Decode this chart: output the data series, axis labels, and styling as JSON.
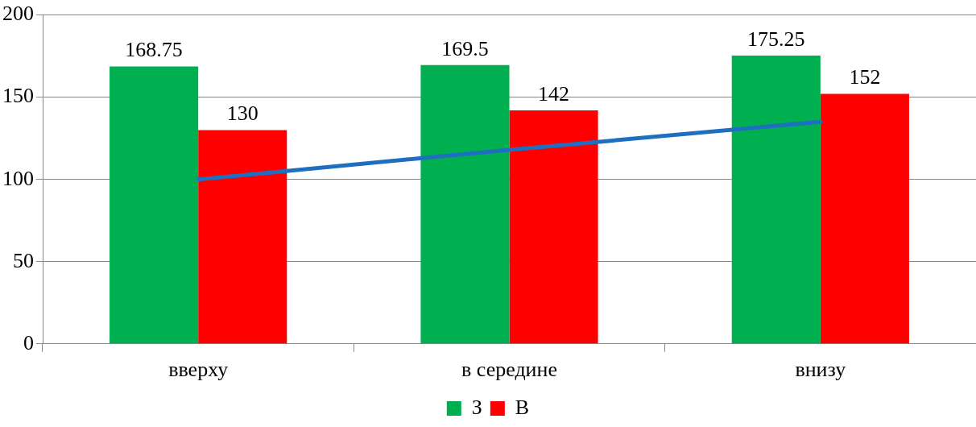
{
  "chart_data": {
    "type": "bar",
    "categories": [
      "вверху",
      "в середине",
      "внизу"
    ],
    "series": [
      {
        "name": "З",
        "color": "#00b050",
        "values": [
          168.75,
          169.5,
          175.25
        ],
        "value_labels": [
          "168.75",
          "169.5",
          "175.25"
        ]
      },
      {
        "name": "В",
        "color": "#ff0000",
        "values": [
          130,
          142,
          152
        ],
        "value_labels": [
          "130",
          "142",
          "152"
        ]
      },
      {
        "type": "line",
        "color": "#1f6fc0",
        "values": [
          100,
          118,
          135
        ]
      }
    ],
    "ylim": [
      0,
      200
    ],
    "yticks": [
      0,
      50,
      100,
      150,
      200
    ],
    "grid": "y",
    "legend": "bottom"
  }
}
